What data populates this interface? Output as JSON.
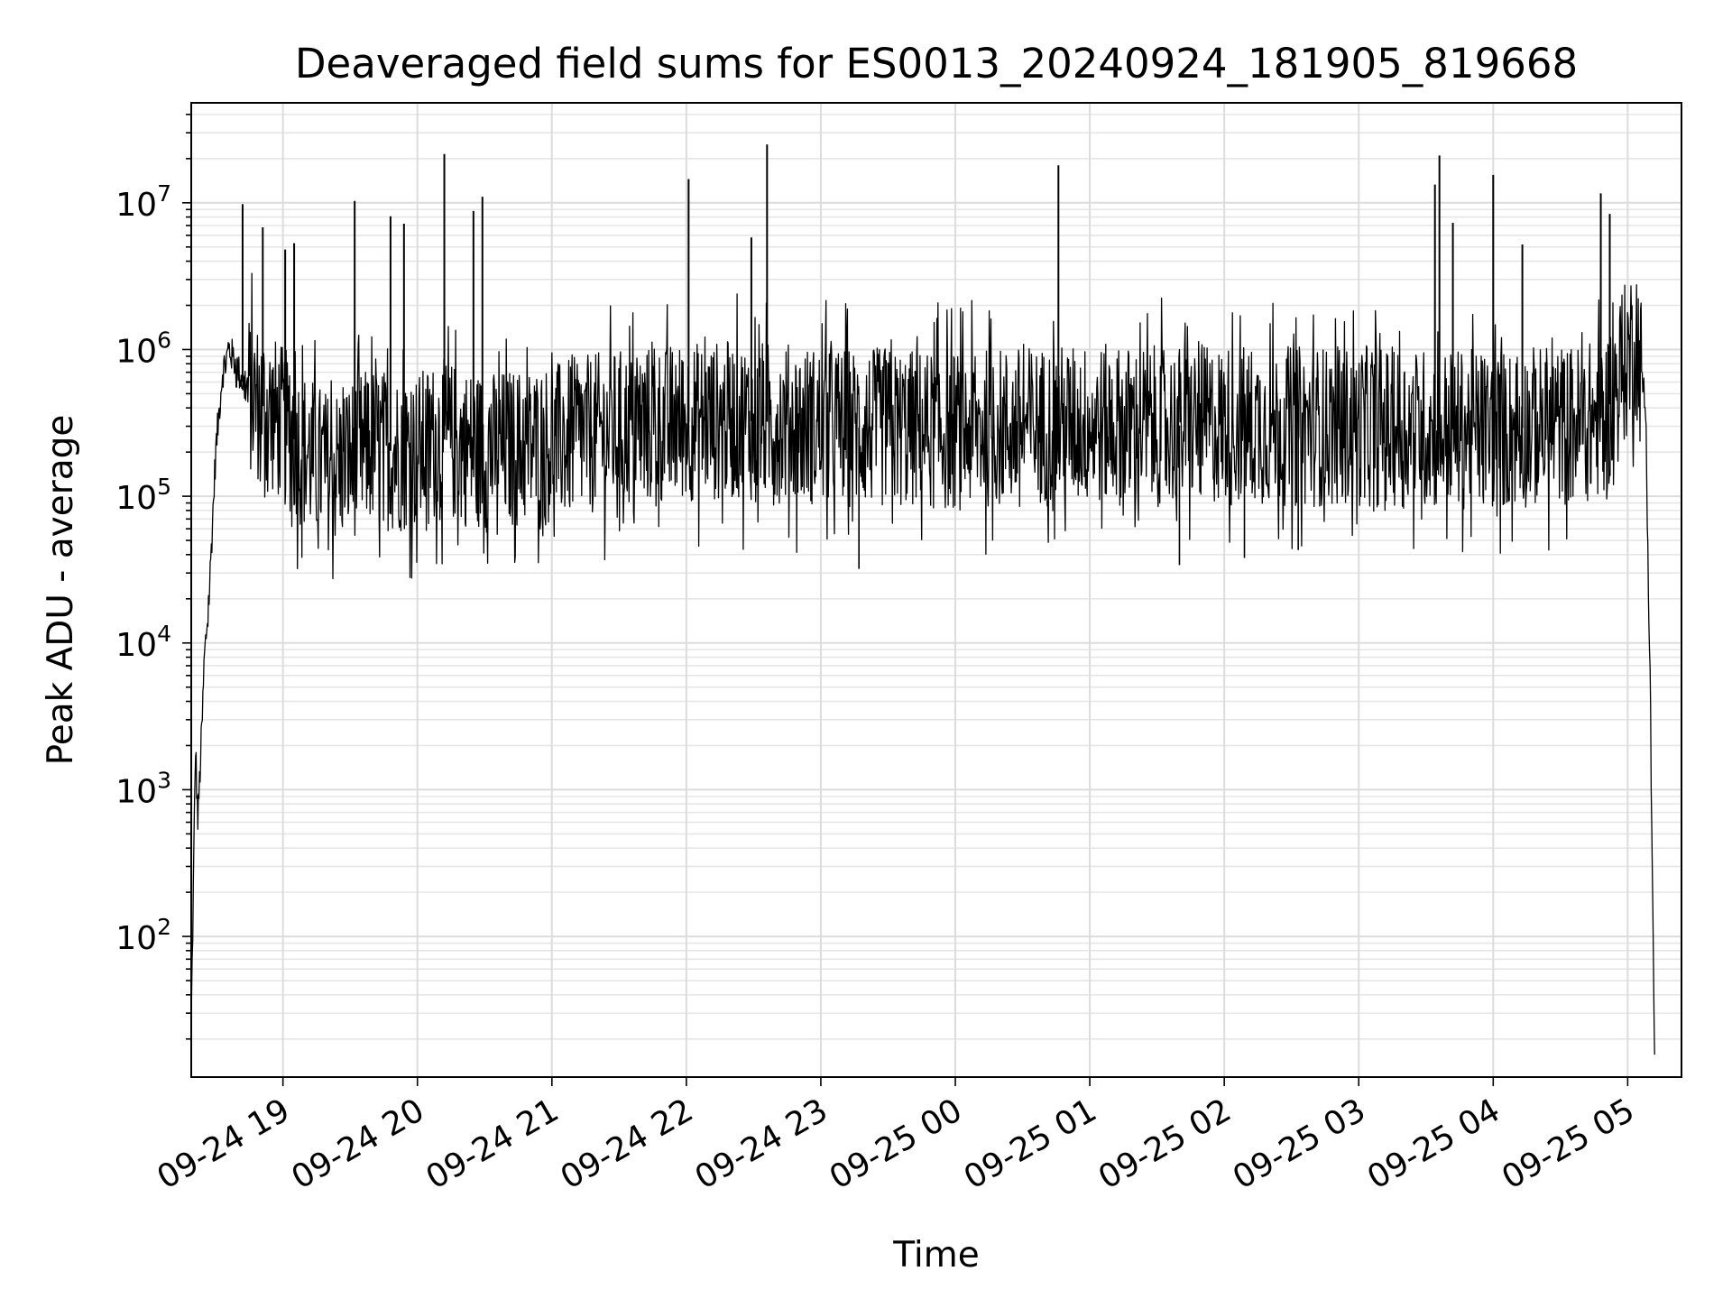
{
  "chart_data": {
    "type": "line",
    "title": "Deaveraged field sums for ES0013_20240924_181905_819668",
    "xlabel": "Time",
    "ylabel": "Peak ADU - average",
    "yscale": "log",
    "ylim": [
      11,
      48000000
    ],
    "xlim": [
      "2024-09-24 18:19:05",
      "2024-09-25 05:24:00"
    ],
    "grid": "major and minor",
    "line_color": "#000000",
    "x_tick_labels": [
      "09-24 19",
      "09-24 20",
      "09-24 21",
      "09-24 22",
      "09-24 23",
      "09-25 00",
      "09-25 01",
      "09-25 02",
      "09-25 03",
      "09-25 04",
      "09-25 05"
    ],
    "x_tick_values": [
      "2024-09-24 19:00",
      "2024-09-24 20:00",
      "2024-09-24 21:00",
      "2024-09-24 22:00",
      "2024-09-24 23:00",
      "2024-09-25 00:00",
      "2024-09-25 01:00",
      "2024-09-25 02:00",
      "2024-09-25 03:00",
      "2024-09-25 04:00",
      "2024-09-25 05:00"
    ],
    "y_tick_labels": [
      {
        "base": "10",
        "exp": "2",
        "value": 100
      },
      {
        "base": "10",
        "exp": "3",
        "value": 1000
      },
      {
        "base": "10",
        "exp": "4",
        "value": 10000
      },
      {
        "base": "10",
        "exp": "5",
        "value": 100000
      },
      {
        "base": "10",
        "exp": "6",
        "value": 1000000
      },
      {
        "base": "10",
        "exp": "7",
        "value": 10000000
      }
    ],
    "series": [
      {
        "x": [
          "2024-09-24 18:19",
          "2024-09-24 18:21",
          "2024-09-24 18:22",
          "2024-09-24 18:24",
          "2024-09-24 18:25",
          "2024-09-24 18:27",
          "2024-09-24 18:30",
          "2024-09-24 18:33",
          "2024-09-24 18:36",
          "2024-09-24 18:39",
          "2024-09-24 18:42",
          "2024-09-24 18:45",
          "2024-09-24 18:48",
          "2024-09-24 18:52",
          "2024-09-24 18:56",
          "2024-09-24 19:00",
          "2024-09-24 19:10",
          "2024-09-24 19:20",
          "2024-09-24 19:30",
          "2024-09-24 19:40",
          "2024-09-24 19:50",
          "2024-09-24 20:00",
          "2024-09-24 20:10",
          "2024-09-24 20:20",
          "2024-09-24 20:30",
          "2024-09-24 20:40",
          "2024-09-24 21:00",
          "2024-09-24 21:20",
          "2024-09-24 21:40",
          "2024-09-24 22:00",
          "2024-09-24 22:20",
          "2024-09-24 22:40",
          "2024-09-24 23:00",
          "2024-09-24 23:30",
          "2024-09-25 00:00",
          "2024-09-25 00:30",
          "2024-09-25 01:00",
          "2024-09-25 01:30",
          "2024-09-25 02:00",
          "2024-09-25 02:30",
          "2024-09-25 03:00",
          "2024-09-25 03:30",
          "2024-09-25 04:00",
          "2024-09-25 04:20",
          "2024-09-25 04:40",
          "2024-09-25 04:50",
          "2024-09-25 05:00",
          "2024-09-25 05:04",
          "2024-09-25 05:08",
          "2024-09-25 05:10",
          "2024-09-25 05:12"
        ],
        "y": [
          20,
          2000,
          600,
          3000,
          8000,
          20000,
          200000,
          700000,
          1000000,
          800000,
          600000,
          500000,
          450000,
          400000,
          350000,
          300000,
          200000,
          150000,
          180000,
          220000,
          200000,
          200000,
          250000,
          220000,
          200000,
          210000,
          230000,
          270000,
          300000,
          320000,
          330000,
          320000,
          300000,
          290000,
          280000,
          300000,
          310000,
          300000,
          310000,
          300000,
          300000,
          290000,
          280000,
          300000,
          310000,
          350000,
          900000,
          1200000,
          400000,
          5000,
          15
        ]
      }
    ],
    "spikes": [
      {
        "x": "2024-09-24 18:42",
        "y": 9800000
      },
      {
        "x": "2024-09-24 18:51",
        "y": 6800000
      },
      {
        "x": "2024-09-24 19:01",
        "y": 4800000
      },
      {
        "x": "2024-09-24 19:05",
        "y": 5300000
      },
      {
        "x": "2024-09-24 19:32",
        "y": 10300000
      },
      {
        "x": "2024-09-24 19:48",
        "y": 8100000
      },
      {
        "x": "2024-09-24 19:54",
        "y": 7200000
      },
      {
        "x": "2024-09-24 20:12",
        "y": 21500000
      },
      {
        "x": "2024-09-24 20:25",
        "y": 8800000
      },
      {
        "x": "2024-09-24 20:29",
        "y": 11000000
      },
      {
        "x": "2024-09-24 22:01",
        "y": 14500000
      },
      {
        "x": "2024-09-24 22:29",
        "y": 5800000
      },
      {
        "x": "2024-09-24 22:36",
        "y": 25000000
      },
      {
        "x": "2024-09-25 00:46",
        "y": 18000000
      },
      {
        "x": "2024-09-25 03:34",
        "y": 13300000
      },
      {
        "x": "2024-09-25 03:36",
        "y": 21000000
      },
      {
        "x": "2024-09-25 03:42",
        "y": 7300000
      },
      {
        "x": "2024-09-25 04:00",
        "y": 15500000
      },
      {
        "x": "2024-09-25 04:13",
        "y": 5200000
      },
      {
        "x": "2024-09-25 04:48",
        "y": 11600000
      },
      {
        "x": "2024-09-25 04:52",
        "y": 8400000
      }
    ],
    "dips": [
      {
        "x": "2024-09-24 23:17",
        "y": 32000
      },
      {
        "x": "2024-09-25 01:40",
        "y": 34000
      },
      {
        "x": "2024-09-25 02:09",
        "y": 38000
      },
      {
        "x": "2024-09-25 02:33",
        "y": 43000
      }
    ]
  }
}
